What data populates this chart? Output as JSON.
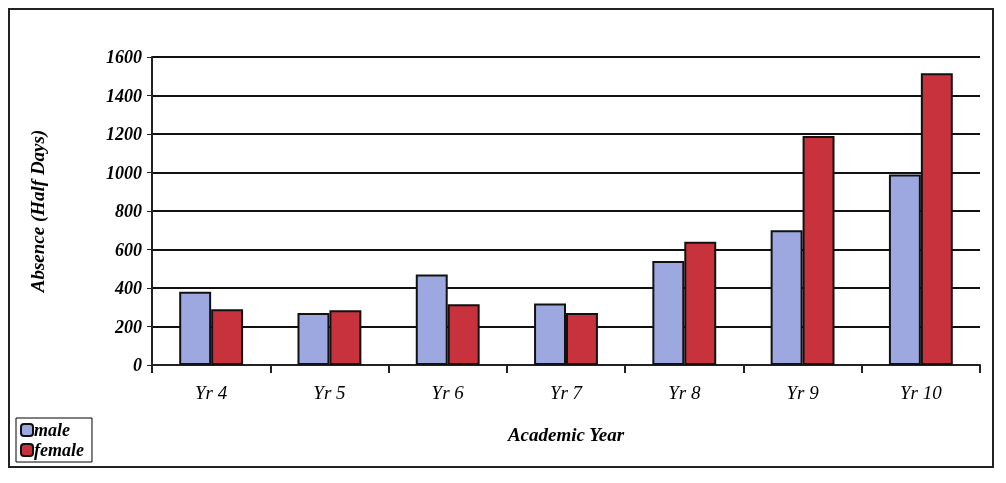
{
  "chart_data": {
    "type": "bar",
    "xlabel": "Academic Year",
    "ylabel": "Absence (Half Days)",
    "categories": [
      "Yr 4",
      "Yr 5",
      "Yr 6",
      "Yr 7",
      "Yr 8",
      "Yr 9",
      "Yr 10"
    ],
    "series": [
      {
        "name": "male",
        "color": "#9ea8e0",
        "values": [
          380,
          270,
          470,
          320,
          540,
          700,
          990
        ]
      },
      {
        "name": "female",
        "color": "#c8323c",
        "values": [
          290,
          285,
          315,
          270,
          640,
          1190,
          1515
        ]
      }
    ],
    "ylim": [
      0,
      1600
    ],
    "yticks": [
      0,
      200,
      400,
      600,
      800,
      1000,
      1200,
      1400,
      1600
    ],
    "grid": "y",
    "legend": "bottom left"
  }
}
